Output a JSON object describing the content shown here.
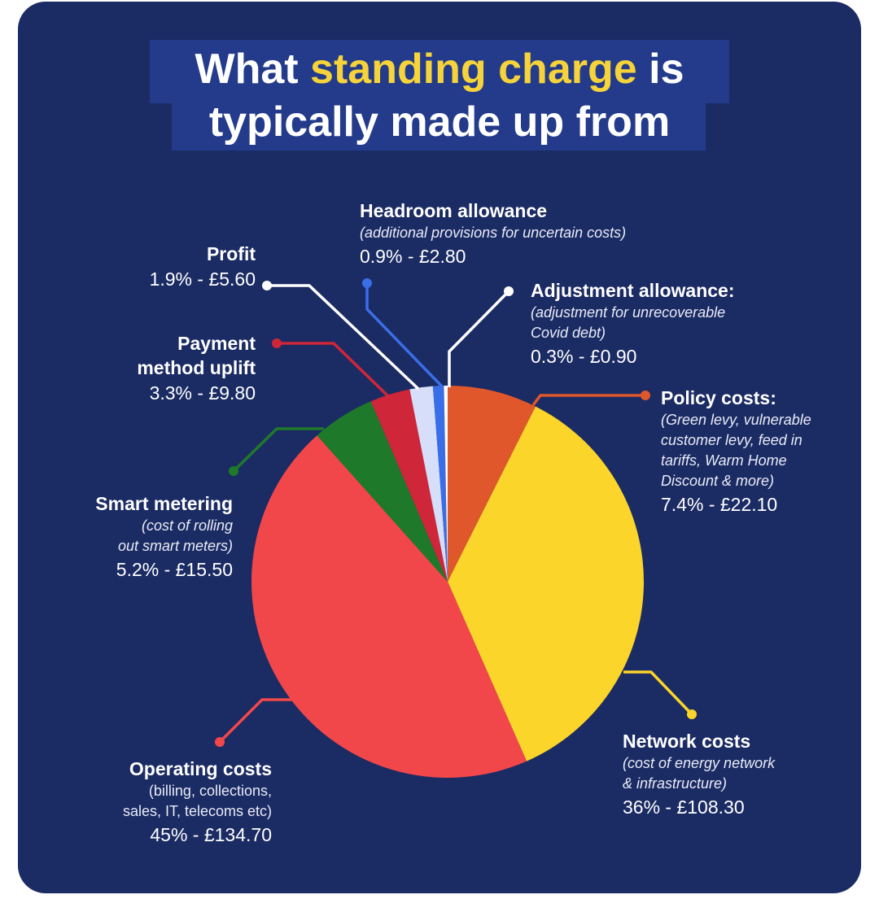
{
  "title": {
    "part1": "What ",
    "highlight": "standing charge",
    "part2": " is",
    "line2": "typically made up from"
  },
  "colors": {
    "background": "#1b2b63",
    "title_band": "#233b8a",
    "highlight": "#f6d33a"
  },
  "chart_data": {
    "type": "pie",
    "title": "What standing charge is typically made up from",
    "start_angle_deg": 0,
    "direction": "clockwise",
    "slices": [
      {
        "label": "Policy costs:",
        "note": "(Green levy, vulnerable customer levy, feed in tariffs, Warm Home Discount & more)",
        "percent": 7.4,
        "value": 22.1,
        "value_label": "7.4% - £22.10",
        "color": "#e0572c"
      },
      {
        "label": "Network costs",
        "note": "(cost of energy network & infrastructure)",
        "percent": 36,
        "value": 108.3,
        "value_label": "36% - £108.30",
        "color": "#fbd52a"
      },
      {
        "label": "Operating costs",
        "note": "(billing, collections, sales, IT, telecoms etc)",
        "percent": 45,
        "value": 134.7,
        "value_label": "45% - £134.70",
        "color": "#f2474a"
      },
      {
        "label": "Smart metering",
        "note": "(cost of rolling out smart meters)",
        "percent": 5.2,
        "value": 15.5,
        "value_label": "5.2% - £15.50",
        "color": "#1e7a2a"
      },
      {
        "label": "Payment method uplift",
        "note": "",
        "percent": 3.3,
        "value": 9.8,
        "value_label": "3.3% - £9.80",
        "color": "#cf2639"
      },
      {
        "label": "Profit",
        "note": "",
        "percent": 1.9,
        "value": 5.6,
        "value_label": "1.9% - £5.60",
        "color": "#d7defa"
      },
      {
        "label": "Headroom allowance",
        "note": "(additional provisions for uncertain costs)",
        "percent": 0.9,
        "value": 2.8,
        "value_label": "0.9% - £2.80",
        "color": "#3a6ee8"
      },
      {
        "label": "Adjustment allowance:",
        "note": "(adjustment for unrecoverable Covid debt)",
        "percent": 0.3,
        "value": 0.9,
        "value_label": "0.3% - £0.90",
        "color": "#ffffff"
      }
    ]
  },
  "labels": {
    "headroom": {
      "name": "Headroom allowance",
      "note": "(additional provisions for uncertain costs)",
      "value": "0.9% - £2.80"
    },
    "profit": {
      "name": "Profit",
      "value": "1.9% - £5.60"
    },
    "adjustment": {
      "name": "Adjustment allowance:",
      "note1": "(adjustment for unrecoverable",
      "note2": "Covid debt)",
      "value": "0.3% - £0.90"
    },
    "payment": {
      "name1": "Payment",
      "name2": "method uplift",
      "value": "3.3% - £9.80"
    },
    "policy": {
      "name": "Policy costs:",
      "note1": "(Green levy, vulnerable",
      "note2": "customer levy, feed in",
      "note3": "tariffs, Warm Home",
      "note4": "Discount & more)",
      "value": "7.4% - £22.10"
    },
    "smart": {
      "name": "Smart metering",
      "note1": "(cost of rolling",
      "note2": "out smart meters)",
      "value": "5.2% - £15.50"
    },
    "network": {
      "name": "Network costs",
      "note1": "(cost of energy network",
      "note2": "& infrastructure)",
      "value": "36% - £108.30"
    },
    "operating": {
      "name": "Operating costs",
      "note1": "(billing, collections,",
      "note2": "sales, IT, telecoms etc)",
      "value": "45% - £134.70"
    }
  }
}
